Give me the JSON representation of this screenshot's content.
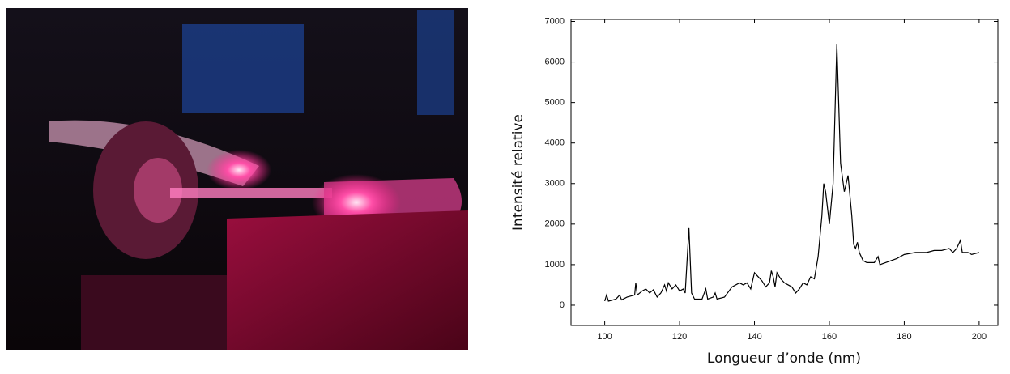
{
  "chart_data": {
    "type": "line",
    "x_label": "Longueur d’onde (nm)",
    "y_label": "Intensité relative",
    "x": [
      100,
      100.5,
      101,
      103,
      104,
      104.5,
      106,
      108,
      108.3,
      108.7,
      110,
      111,
      112,
      113,
      114,
      115,
      116,
      116.5,
      117,
      118,
      119,
      120,
      121,
      121.5,
      122.5,
      123.2,
      124,
      126,
      127,
      127.5,
      129,
      129.5,
      130,
      132,
      134,
      136,
      137,
      138,
      139,
      140,
      141,
      142,
      143,
      144,
      144.5,
      145,
      145.5,
      146,
      147,
      148,
      149,
      150,
      151,
      152,
      153,
      154,
      155,
      156,
      157,
      158,
      158.5,
      159,
      160,
      161,
      162,
      163,
      164,
      165,
      166,
      166.5,
      167,
      167.5,
      168,
      169,
      170,
      172,
      173,
      173.5,
      175,
      178,
      180,
      183,
      186,
      188,
      190,
      192,
      193,
      194,
      195,
      195.5,
      197,
      198,
      200
    ],
    "values": [
      100,
      250,
      100,
      150,
      250,
      130,
      200,
      250,
      550,
      250,
      350,
      400,
      300,
      380,
      200,
      300,
      500,
      350,
      550,
      400,
      500,
      350,
      400,
      300,
      1900,
      300,
      150,
      150,
      400,
      150,
      200,
      300,
      150,
      200,
      450,
      550,
      500,
      550,
      400,
      800,
      700,
      600,
      450,
      550,
      850,
      700,
      450,
      800,
      650,
      550,
      500,
      450,
      300,
      400,
      550,
      500,
      700,
      650,
      1200,
      2200,
      3000,
      2800,
      2000,
      3000,
      6450,
      3500,
      2800,
      3200,
      2200,
      1500,
      1400,
      1550,
      1300,
      1100,
      1050,
      1050,
      1200,
      1000,
      1050,
      1150,
      1250,
      1300,
      1300,
      1350,
      1350,
      1400,
      1300,
      1400,
      1600,
      1300,
      1300,
      1250,
      1300
    ],
    "color": "#000000",
    "xlim": [
      91,
      205
    ],
    "xticks": [
      100,
      120,
      140,
      160,
      180,
      200
    ],
    "ylim": [
      -500,
      7050
    ],
    "yticks": [
      0,
      1000,
      2000,
      3000,
      4000,
      5000,
      6000,
      7000
    ]
  }
}
